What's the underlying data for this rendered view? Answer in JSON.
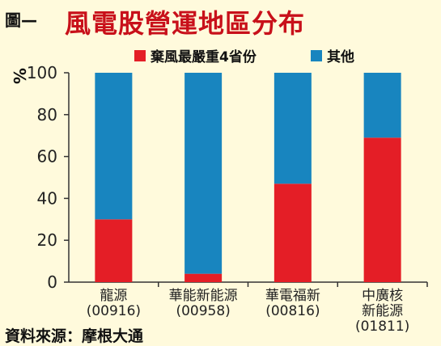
{
  "header": {
    "figure_label": "圖—",
    "title": "風電股營運地區分布"
  },
  "source": "資料來源：摩根大通",
  "colors": {
    "red": "#e41e26",
    "blue": "#1885bf",
    "axis": "#333333"
  },
  "chart_data": {
    "type": "bar",
    "stacked": true,
    "title": "風電股營運地區分布",
    "ylabel": "%",
    "ylim": [
      0,
      100
    ],
    "yticks": [
      0,
      20,
      40,
      60,
      80,
      100
    ],
    "categories": [
      [
        "龍源",
        "(00916)"
      ],
      [
        "華能新能源",
        "(00958)"
      ],
      [
        "華電福新",
        "(00816)"
      ],
      [
        "中廣核",
        "新能源",
        "(01811)"
      ]
    ],
    "series": [
      {
        "name": "棄風最嚴重4省份",
        "color": "#e41e26",
        "values": [
          30,
          4,
          47,
          69
        ]
      },
      {
        "name": "其他",
        "color": "#1885bf",
        "values": [
          70,
          96,
          53,
          31
        ]
      }
    ],
    "legend_position": "top-right",
    "grid": false
  }
}
